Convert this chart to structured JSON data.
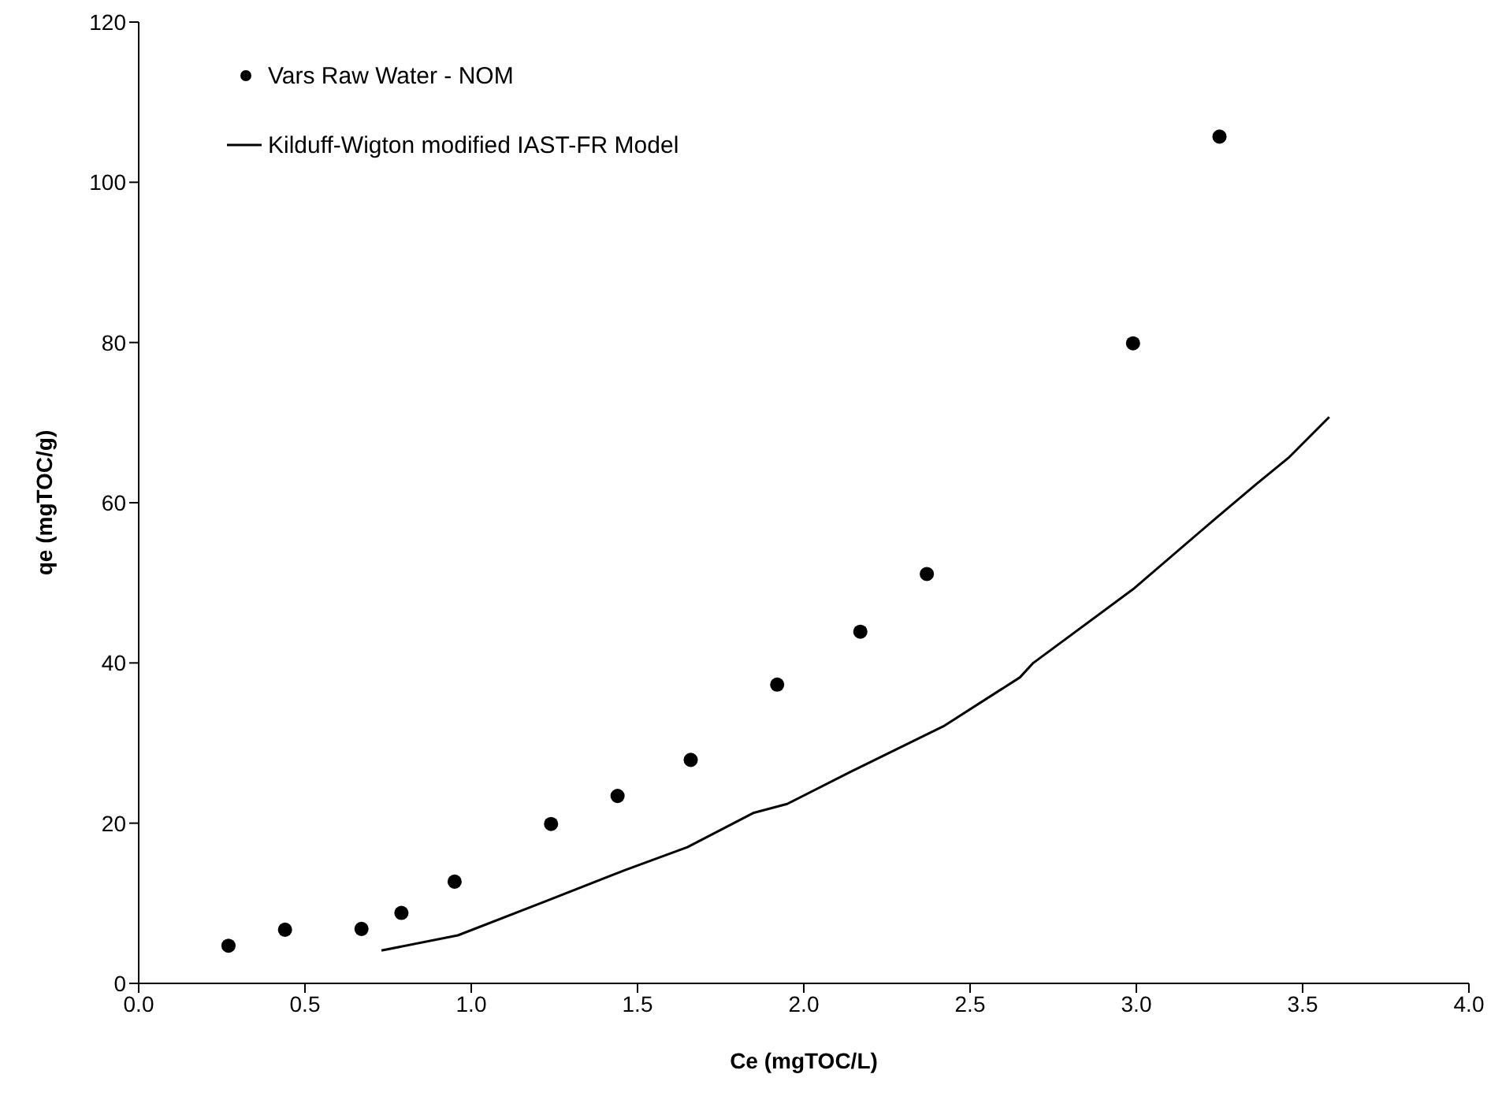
{
  "chart_data": {
    "type": "scatter",
    "xlabel": "Ce (mgTOC/L)",
    "ylabel": "qe (mgTOC/g)",
    "xlim": [
      0,
      4
    ],
    "xticks": [
      {
        "value": 0,
        "label": "0.0"
      },
      {
        "value": 0.5,
        "label": "0.5"
      },
      {
        "value": 1,
        "label": "1.0"
      },
      {
        "value": 1.5,
        "label": "1.5"
      },
      {
        "value": 2,
        "label": "2.0"
      },
      {
        "value": 2.5,
        "label": "2.5"
      },
      {
        "value": 3,
        "label": "3.0"
      },
      {
        "value": 3.5,
        "label": "3.5"
      },
      {
        "value": 4,
        "label": "4.0"
      }
    ],
    "ylim": [
      0,
      120
    ],
    "yticks": [
      0,
      20,
      40,
      60,
      80,
      100,
      120
    ],
    "grid": false,
    "legend": "top left",
    "series": [
      {
        "name": "Vars Raw Water - NOM",
        "marker": "circle",
        "color": "#000000",
        "x": [
          0.27,
          0.44,
          0.67,
          0.79,
          0.95,
          1.24,
          1.44,
          1.66,
          1.92,
          2.17,
          2.37,
          2.99,
          3.25
        ],
        "values": [
          4.7,
          6.7,
          6.8,
          8.8,
          12.7,
          19.9,
          23.4,
          27.9,
          37.3,
          43.9,
          51.1,
          79.9,
          105.7
        ]
      },
      {
        "name": "Kilduff-Wigton modified IAST-FR Model",
        "type": "line",
        "marker": "none",
        "line_style": "solid",
        "color": "#000000",
        "x": [
          0.73,
          0.96,
          1.22,
          1.46,
          1.65,
          1.85,
          1.95,
          2.14,
          2.42,
          2.65,
          2.69,
          2.99,
          3.24,
          3.36,
          3.46,
          3.58
        ],
        "values": [
          4.1,
          6.0,
          10.2,
          14.1,
          17.0,
          21.3,
          22.4,
          26.4,
          32.1,
          38.2,
          40.0,
          49.2,
          58.1,
          62.3,
          65.7,
          70.7
        ]
      }
    ]
  }
}
